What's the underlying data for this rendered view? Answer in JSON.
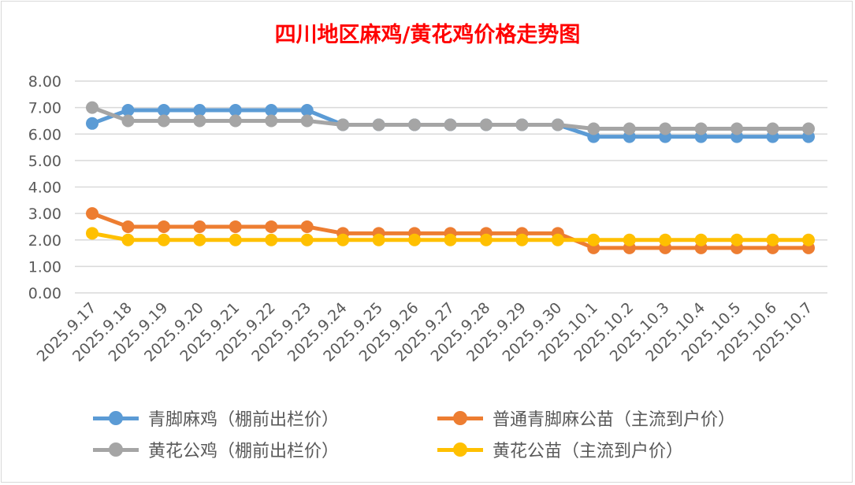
{
  "chart_data": {
    "type": "line",
    "title": "四川地区麻鸡/黄花鸡价格走势图",
    "xlabel": "",
    "ylabel": "",
    "ylim": [
      0,
      8
    ],
    "yticks": [
      "0.00",
      "1.00",
      "2.00",
      "3.00",
      "4.00",
      "5.00",
      "6.00",
      "7.00",
      "8.00"
    ],
    "grid": true,
    "legend_position": "bottom",
    "categories": [
      "2025.9.17",
      "2025.9.18",
      "2025.9.19",
      "2025.9.20",
      "2025.9.21",
      "2025.9.22",
      "2025.9.23",
      "2025.9.24",
      "2025.9.25",
      "2025.9.26",
      "2025.9.27",
      "2025.9.28",
      "2025.9.29",
      "2025.9.30",
      "2025.10.1",
      "2025.10.2",
      "2025.10.3",
      "2025.10.4",
      "2025.10.5",
      "2025.10.6",
      "2025.10.7"
    ],
    "series": [
      {
        "name": "青脚麻鸡（棚前出栏价）",
        "color": "#5b9bd5",
        "values": [
          6.4,
          6.9,
          6.9,
          6.9,
          6.9,
          6.9,
          6.9,
          6.35,
          6.35,
          6.35,
          6.35,
          6.35,
          6.35,
          6.35,
          5.9,
          5.9,
          5.9,
          5.9,
          5.9,
          5.9,
          5.9
        ]
      },
      {
        "name": "普通青脚麻公苗（主流到户价）",
        "color": "#ed7d31",
        "values": [
          3.0,
          2.5,
          2.5,
          2.5,
          2.5,
          2.5,
          2.5,
          2.25,
          2.25,
          2.25,
          2.25,
          2.25,
          2.25,
          2.25,
          1.7,
          1.7,
          1.7,
          1.7,
          1.7,
          1.7,
          1.7
        ]
      },
      {
        "name": "黄花公鸡（棚前出栏价）",
        "color": "#a5a5a5",
        "values": [
          7.0,
          6.5,
          6.5,
          6.5,
          6.5,
          6.5,
          6.5,
          6.35,
          6.35,
          6.35,
          6.35,
          6.35,
          6.35,
          6.35,
          6.2,
          6.2,
          6.2,
          6.2,
          6.2,
          6.2,
          6.2
        ]
      },
      {
        "name": "黄花公苗（主流到户价）",
        "color": "#ffc000",
        "values": [
          2.25,
          2.0,
          2.0,
          2.0,
          2.0,
          2.0,
          2.0,
          2.0,
          2.0,
          2.0,
          2.0,
          2.0,
          2.0,
          2.0,
          2.0,
          2.0,
          2.0,
          2.0,
          2.0,
          2.0,
          2.0
        ]
      }
    ]
  }
}
